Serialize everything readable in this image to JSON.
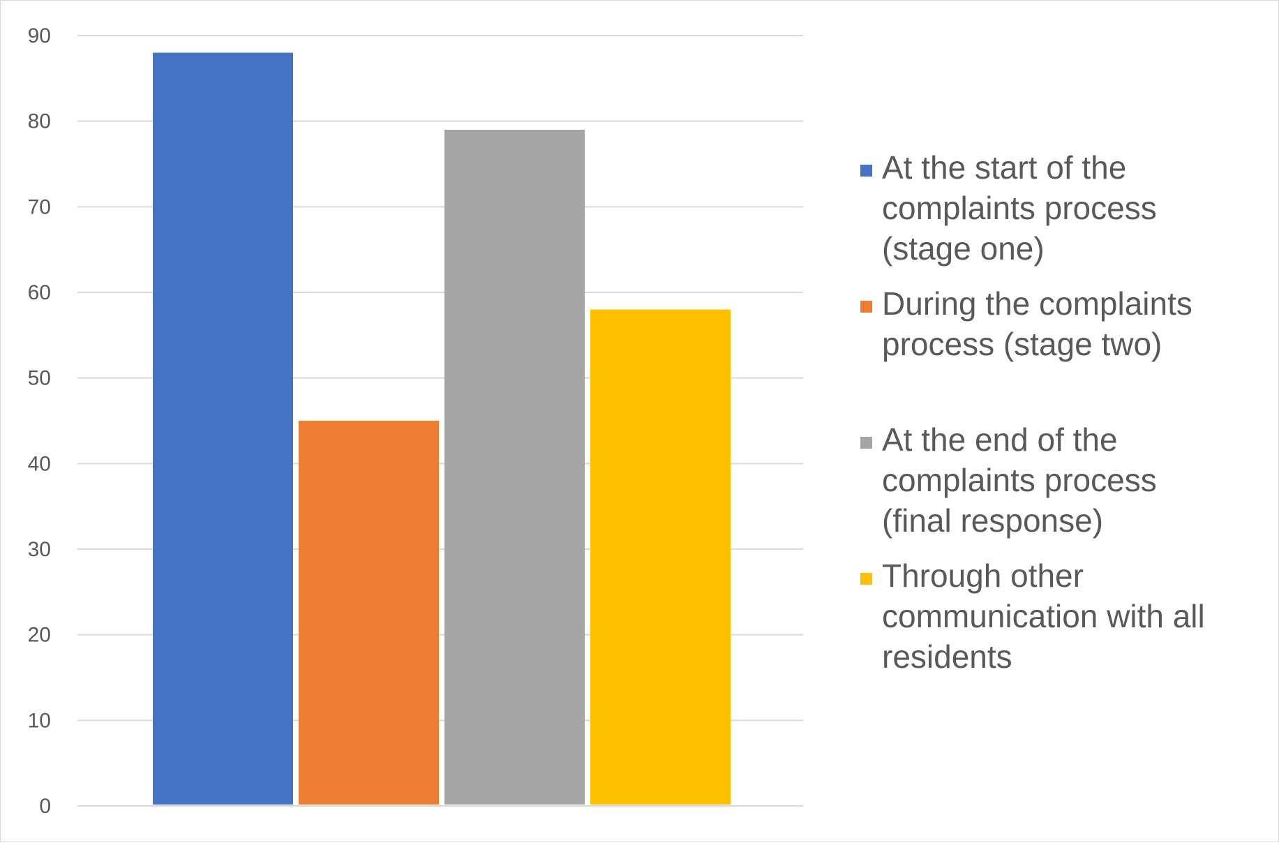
{
  "chart_data": {
    "type": "bar",
    "title": "",
    "xlabel": "",
    "ylabel": "",
    "ylim": [
      0,
      90
    ],
    "ytick_step": 10,
    "grid": true,
    "legend_position": "right",
    "series": [
      {
        "name": "At the start of the complaints process (stage one)",
        "value": 88,
        "color": "#4472C4"
      },
      {
        "name": "During the complaints process (stage two)",
        "value": 45,
        "color": "#ED7D31"
      },
      {
        "name": "At the end of the complaints process (final response)",
        "value": 79,
        "color": "#A5A5A5"
      },
      {
        "name": "Through other communication with all residents",
        "value": 58,
        "color": "#FFC000"
      }
    ],
    "legend_lines": [
      [
        "At the start of the",
        "complaints process",
        "(stage one)"
      ],
      [
        "During the complaints",
        "process (stage two)"
      ],
      [
        "At the end of the",
        "complaints process",
        "(final response)"
      ],
      [
        "Through other",
        "communication with all",
        "residents"
      ]
    ],
    "yticks": [
      "0",
      "10",
      "20",
      "30",
      "40",
      "50",
      "60",
      "70",
      "80",
      "90"
    ]
  }
}
